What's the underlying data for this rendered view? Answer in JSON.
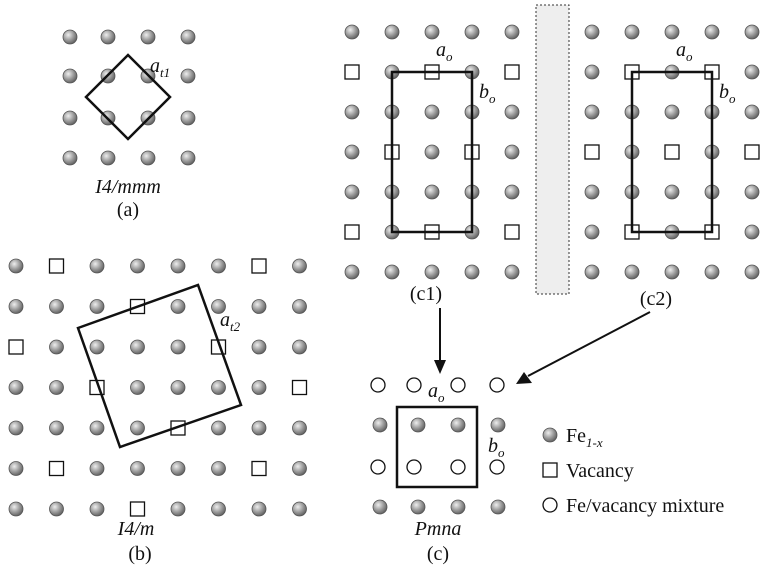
{
  "panels": {
    "a": {
      "lattice_label": {
        "main": "a",
        "sub": "t1"
      },
      "space_group": "I4/mmm",
      "caption": "(a)"
    },
    "b": {
      "lattice_label": {
        "main": "a",
        "sub": "t2"
      },
      "space_group": "I4/m",
      "caption": "(b)"
    },
    "c1": {
      "a_label": {
        "main": "a",
        "sub": "o"
      },
      "b_label": {
        "main": "b",
        "sub": "o"
      },
      "caption": "(c1)"
    },
    "c2": {
      "a_label": {
        "main": "a",
        "sub": "o"
      },
      "b_label": {
        "main": "b",
        "sub": "o"
      },
      "caption": "(c2)"
    },
    "c": {
      "a_label": {
        "main": "a",
        "sub": "o"
      },
      "b_label": {
        "main": "b",
        "sub": "o"
      },
      "space_group": "Pmna",
      "caption": "(c)"
    }
  },
  "legend": [
    {
      "main": "Fe",
      "sub": "1-x"
    },
    {
      "main": "Vacancy"
    },
    {
      "main": "Fe/vacancy mixture"
    }
  ]
}
